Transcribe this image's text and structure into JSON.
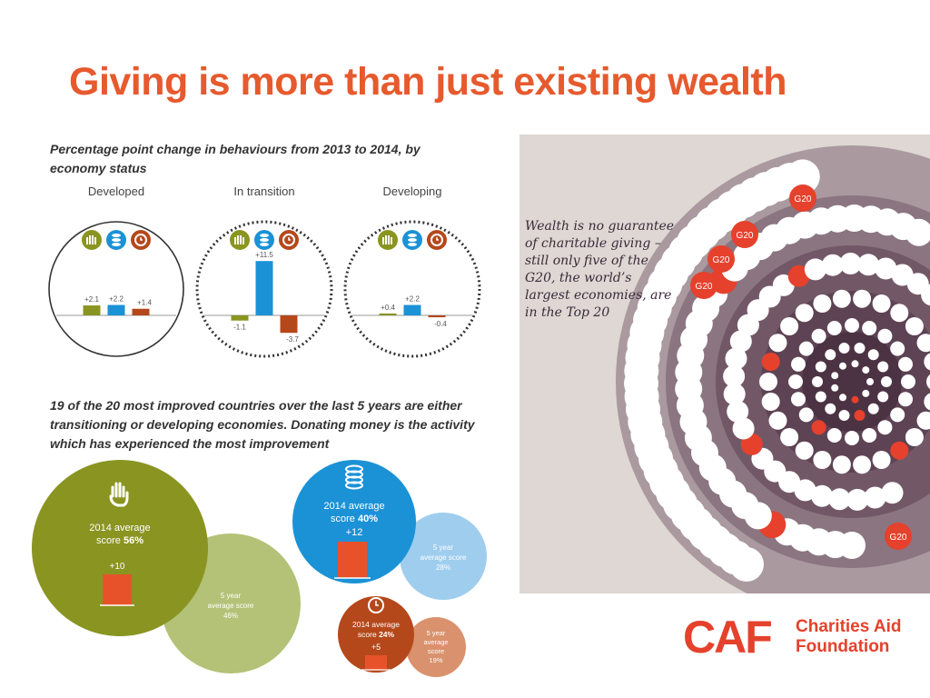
{
  "title": "Giving is more than just existing wealth",
  "caption_top": "Percentage point change in behaviours from 2013 to 2014, by economy status",
  "caption_mid": "19 of the 20 most improved countries over the last 5 years are either transitioning or developing economies. Donating money is the activity which has experienced the most improvement",
  "chart_data": {
    "type": "bar",
    "title": "Percentage point change in behaviours from 2013 to 2014, by economy status",
    "categories": [
      "Developed",
      "In transition",
      "Developing"
    ],
    "series": [
      {
        "values": [
          2.1,
          -1.1,
          0.4
        ],
        "labels": [
          "+2.1",
          "-1.1",
          "+0.4"
        ]
      },
      {
        "values": [
          2.2,
          11.5,
          2.2
        ],
        "labels": [
          "+2.2",
          "+11.5",
          "+2.2"
        ]
      },
      {
        "values": [
          1.4,
          -3.7,
          -0.4
        ],
        "labels": [
          "+1.4",
          "-3.7",
          "-0.4"
        ]
      }
    ],
    "colors": [
      "#8a9421",
      "#1b92d6",
      "#b5481b"
    ]
  },
  "bubbles": {
    "helping": {
      "avg_label": "2014 average",
      "avg_prefix": "score ",
      "avg_value": "56%",
      "change": "+10",
      "five_year_l1": "5 year",
      "five_year_l2": "average score",
      "five_year_value": "46%"
    },
    "donating": {
      "avg_label": "2014 average",
      "avg_prefix": "score ",
      "avg_value": "40%",
      "change": "+12",
      "five_year_l1": "5 year",
      "five_year_l2": "average score",
      "five_year_value": "28%"
    },
    "volunteering": {
      "avg_label": "2014 average",
      "avg_prefix": "score ",
      "avg_value": "24%",
      "change": "+5",
      "five_year_l1": "5 year",
      "five_year_l2": "average",
      "five_year_l3": "score",
      "five_year_value": "19%"
    }
  },
  "quote": "Wealth is no guarantee of charitable giving – still only five of the G20, the world’s largest economies, are in the Top 20",
  "g20_label": "G20",
  "logo": {
    "mark": "CAF",
    "name_line1": "Charities Aid",
    "name_line2": "Foundation"
  }
}
